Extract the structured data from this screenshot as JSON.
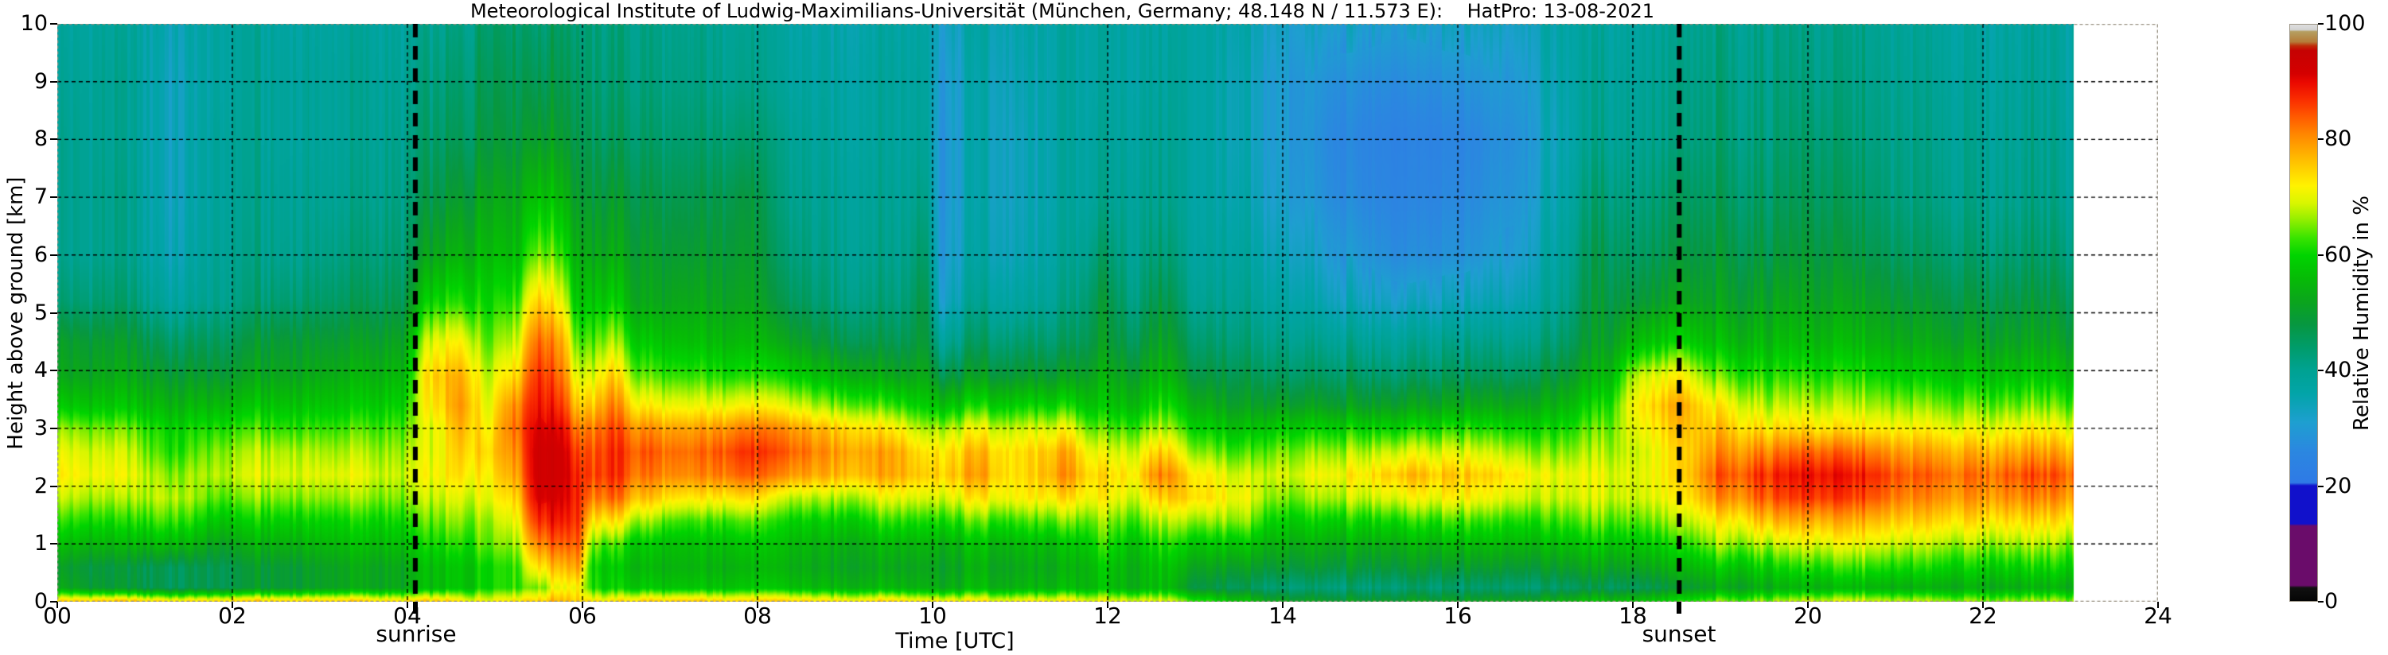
{
  "title": "Meteorological Institute of Ludwig-Maximilians-Universität (München, Germany; 48.148 N / 11.573 E):    HatPro: 13-08-2021",
  "x_axis": {
    "label": "Time [UTC]",
    "ticks": [
      "00",
      "02",
      "04",
      "06",
      "08",
      "10",
      "12",
      "14",
      "16",
      "18",
      "20",
      "22",
      "24"
    ],
    "range_hours": [
      0,
      24
    ]
  },
  "y_axis": {
    "label": "Height above ground [km]",
    "ticks": [
      "0",
      "1",
      "2",
      "3",
      "4",
      "5",
      "6",
      "7",
      "8",
      "9",
      "10"
    ],
    "range_km": [
      0,
      10
    ]
  },
  "colorbar": {
    "label": "Relative Humidity in %",
    "tick_labels": [
      "0",
      "20",
      "40",
      "60",
      "80",
      "100"
    ],
    "range": [
      0,
      100
    ],
    "stops": [
      [
        0,
        "#050505"
      ],
      [
        2.3,
        "#111111"
      ],
      [
        2.7,
        "#6a0c6a"
      ],
      [
        13,
        "#6a0c6a"
      ],
      [
        13.4,
        "#1111cb"
      ],
      [
        20,
        "#1111cb"
      ],
      [
        20.5,
        "#2f7ae6"
      ],
      [
        26,
        "#2b87e0"
      ],
      [
        31,
        "#1e9fd0"
      ],
      [
        36,
        "#02a4a8"
      ],
      [
        40,
        "#00a292"
      ],
      [
        44,
        "#009c6a"
      ],
      [
        48,
        "#079740"
      ],
      [
        52,
        "#0ba51c"
      ],
      [
        56,
        "#06bb06"
      ],
      [
        60,
        "#00d400"
      ],
      [
        63,
        "#39e400"
      ],
      [
        66,
        "#8fee00"
      ],
      [
        69,
        "#d8f600"
      ],
      [
        72,
        "#fff300"
      ],
      [
        75,
        "#ffd000"
      ],
      [
        78,
        "#ffab00"
      ],
      [
        81,
        "#ff8600"
      ],
      [
        84,
        "#ff5a00"
      ],
      [
        87,
        "#fa2d00"
      ],
      [
        90,
        "#ea0800"
      ],
      [
        91.5,
        "#d40000"
      ],
      [
        95.5,
        "#c50202"
      ],
      [
        96.3,
        "#c02a08"
      ],
      [
        97,
        "#b57b38"
      ],
      [
        98.8,
        "#b59f62"
      ],
      [
        99.1,
        "#d2d2d2"
      ],
      [
        100,
        "#dedede"
      ]
    ]
  },
  "annotations": {
    "sunrise": {
      "label": "sunrise",
      "hour_utc": 4.09
    },
    "sunset": {
      "label": "sunset",
      "hour_utc": 18.53
    }
  },
  "chart_data": {
    "type": "heatmap",
    "title": "Meteorological Institute of Ludwig-Maximilians-Universität (München, Germany; 48.148 N / 11.573 E):    HatPro: 13-08-2021",
    "xlabel": "Time [UTC]",
    "ylabel": "Height above ground [km]",
    "value_label": "Relative Humidity in %",
    "x_unit": "hours UTC",
    "y_unit": "km",
    "x_range": [
      0,
      24
    ],
    "y_range": [
      0,
      10
    ],
    "value_range": [
      0,
      100
    ],
    "data_end_hour": 23.03,
    "grid": true,
    "colorbar_position": "right",
    "heights_km": [
      0.03,
      0.25,
      0.6,
      1.0,
      1.4,
      1.8,
      2.2,
      2.6,
      3.0,
      3.4,
      3.9,
      4.5,
      5.2,
      6.0,
      7.0,
      8.0,
      9.0,
      10.0
    ],
    "columns": [
      {
        "t": 0.0,
        "rh": [
          74,
          52,
          50,
          56,
          62,
          68,
          72,
          70,
          66,
          58,
          52,
          50,
          43,
          40,
          40,
          40,
          39,
          38
        ]
      },
      {
        "t": 0.7,
        "rh": [
          74,
          48,
          47,
          54,
          60,
          66,
          70,
          68,
          64,
          57,
          52,
          49,
          43,
          40,
          40,
          39,
          39,
          38
        ]
      },
      {
        "t": 1.3,
        "rh": [
          72,
          46,
          46,
          56,
          63,
          68,
          66,
          62,
          60,
          55,
          50,
          45,
          38,
          35,
          34,
          34,
          34,
          35
        ]
      },
      {
        "t": 1.9,
        "rh": [
          73,
          47,
          47,
          52,
          58,
          64,
          68,
          66,
          62,
          56,
          50,
          46,
          41,
          40,
          39,
          39,
          38,
          38
        ]
      },
      {
        "t": 2.6,
        "rh": [
          74,
          50,
          50,
          55,
          60,
          66,
          70,
          68,
          63,
          58,
          53,
          50,
          44,
          41,
          40,
          39,
          39,
          38
        ]
      },
      {
        "t": 3.3,
        "rh": [
          74,
          52,
          52,
          56,
          60,
          66,
          70,
          67,
          63,
          58,
          54,
          50,
          45,
          42,
          40,
          39,
          39,
          38
        ]
      },
      {
        "t": 3.9,
        "rh": [
          73,
          53,
          53,
          57,
          61,
          66,
          69,
          67,
          64,
          60,
          56,
          52,
          47,
          44,
          42,
          41,
          40,
          39
        ]
      },
      {
        "t": 4.3,
        "rh": [
          74,
          56,
          56,
          60,
          64,
          68,
          71,
          70,
          70,
          73,
          75,
          70,
          60,
          52,
          47,
          44,
          42,
          40
        ]
      },
      {
        "t": 4.65,
        "rh": [
          72,
          58,
          58,
          62,
          66,
          70,
          74,
          76,
          78,
          80,
          78,
          72,
          62,
          55,
          50,
          46,
          44,
          42
        ]
      },
      {
        "t": 4.9,
        "rh": [
          70,
          60,
          60,
          64,
          66,
          70,
          72,
          74,
          72,
          70,
          68,
          64,
          60,
          56,
          52,
          48,
          46,
          44
        ]
      },
      {
        "t": 5.2,
        "rh": [
          72,
          62,
          62,
          66,
          70,
          74,
          78,
          80,
          82,
          80,
          74,
          68,
          62,
          56,
          52,
          48,
          46,
          44
        ]
      },
      {
        "t": 5.5,
        "rh": [
          75,
          66,
          74,
          82,
          88,
          92,
          93,
          93,
          92,
          90,
          88,
          84,
          76,
          66,
          58,
          51,
          47,
          44
        ]
      },
      {
        "t": 5.75,
        "rh": [
          76,
          70,
          76,
          83,
          88,
          91,
          92,
          92,
          90,
          86,
          82,
          78,
          70,
          62,
          55,
          49,
          46,
          44
        ]
      },
      {
        "t": 5.95,
        "rh": [
          75,
          72,
          79,
          84,
          87,
          88,
          88,
          86,
          82,
          76,
          70,
          64,
          58,
          54,
          50,
          47,
          45,
          43
        ]
      },
      {
        "t": 6.1,
        "rh": [
          73,
          62,
          61,
          66,
          74,
          82,
          86,
          85,
          82,
          76,
          70,
          64,
          58,
          53,
          49,
          46,
          44,
          43
        ]
      },
      {
        "t": 6.3,
        "rh": [
          73,
          60,
          59,
          64,
          74,
          84,
          88,
          88,
          86,
          82,
          76,
          68,
          60,
          54,
          50,
          46,
          44,
          43
        ]
      },
      {
        "t": 6.7,
        "rh": [
          74,
          58,
          55,
          58,
          66,
          76,
          82,
          84,
          80,
          72,
          64,
          58,
          52,
          50,
          47,
          44,
          42,
          41
        ]
      },
      {
        "t": 7.2,
        "rh": [
          74,
          57,
          54,
          56,
          62,
          72,
          80,
          82,
          78,
          70,
          62,
          56,
          52,
          49,
          46,
          43,
          41,
          40
        ]
      },
      {
        "t": 7.9,
        "rh": [
          74,
          58,
          55,
          58,
          64,
          74,
          84,
          87,
          82,
          72,
          62,
          56,
          52,
          50,
          48,
          44,
          41,
          40
        ]
      },
      {
        "t": 8.3,
        "rh": [
          74,
          57,
          54,
          56,
          60,
          68,
          80,
          84,
          80,
          70,
          60,
          52,
          46,
          43,
          41,
          40,
          38,
          37
        ]
      },
      {
        "t": 9.0,
        "rh": [
          73,
          56,
          53,
          55,
          60,
          68,
          78,
          80,
          76,
          66,
          56,
          48,
          43,
          41,
          40,
          39,
          38,
          37
        ]
      },
      {
        "t": 9.6,
        "rh": [
          73,
          55,
          52,
          55,
          62,
          70,
          78,
          78,
          72,
          62,
          52,
          46,
          42,
          40,
          39,
          38,
          38,
          37
        ]
      },
      {
        "t": 9.9,
        "rh": [
          72,
          55,
          53,
          56,
          62,
          70,
          76,
          74,
          68,
          60,
          54,
          50,
          48,
          45,
          42,
          40,
          39,
          38
        ]
      },
      {
        "t": 10.1,
        "rh": [
          72,
          54,
          52,
          55,
          62,
          70,
          76,
          74,
          68,
          58,
          48,
          40,
          33,
          31,
          30,
          30,
          31,
          33
        ]
      },
      {
        "t": 10.5,
        "rh": [
          71,
          55,
          53,
          56,
          63,
          72,
          78,
          76,
          70,
          60,
          50,
          44,
          39,
          36,
          35,
          35,
          35,
          36
        ]
      },
      {
        "t": 11.0,
        "rh": [
          71,
          55,
          53,
          56,
          63,
          72,
          74,
          74,
          69,
          60,
          50,
          44,
          38,
          35,
          34,
          34,
          35,
          36
        ]
      },
      {
        "t": 11.5,
        "rh": [
          71,
          55,
          53,
          56,
          64,
          73,
          79,
          77,
          70,
          60,
          50,
          44,
          40,
          38,
          37,
          37,
          37,
          37
        ]
      },
      {
        "t": 11.95,
        "rh": [
          70,
          57,
          58,
          62,
          66,
          72,
          74,
          70,
          64,
          58,
          54,
          50,
          48,
          44,
          40,
          39,
          38,
          38
        ]
      },
      {
        "t": 12.3,
        "rh": [
          70,
          55,
          55,
          58,
          64,
          70,
          74,
          70,
          64,
          57,
          52,
          47,
          43,
          41,
          40,
          39,
          38,
          38
        ]
      },
      {
        "t": 12.6,
        "rh": [
          70,
          57,
          58,
          62,
          68,
          76,
          82,
          76,
          68,
          62,
          56,
          52,
          48,
          44,
          41,
          40,
          39,
          38
        ]
      },
      {
        "t": 13.0,
        "rh": [
          62,
          48,
          52,
          58,
          66,
          74,
          73,
          66,
          60,
          54,
          48,
          44,
          40,
          38,
          37,
          37,
          37,
          37
        ]
      },
      {
        "t": 13.5,
        "rh": [
          56,
          45,
          50,
          57,
          65,
          70,
          68,
          62,
          56,
          50,
          46,
          42,
          39,
          37,
          35,
          34,
          34,
          35
        ]
      },
      {
        "t": 14.0,
        "rh": [
          52,
          44,
          50,
          55,
          60,
          66,
          70,
          66,
          60,
          52,
          46,
          42,
          38,
          35,
          32,
          31,
          31,
          33
        ]
      },
      {
        "t": 14.7,
        "rh": [
          50,
          43,
          49,
          54,
          60,
          68,
          72,
          67,
          60,
          51,
          45,
          40,
          34,
          30,
          27,
          26,
          28,
          32
        ]
      },
      {
        "t": 15.4,
        "rh": [
          50,
          43,
          49,
          54,
          61,
          70,
          76,
          69,
          60,
          51,
          44,
          39,
          32,
          27,
          25,
          24,
          27,
          31
        ]
      },
      {
        "t": 16.0,
        "rh": [
          50,
          43,
          49,
          55,
          62,
          71,
          75,
          69,
          61,
          52,
          45,
          40,
          33,
          28,
          26,
          25,
          28,
          32
        ]
      },
      {
        "t": 16.6,
        "rh": [
          52,
          44,
          50,
          56,
          62,
          70,
          74,
          68,
          61,
          53,
          46,
          41,
          35,
          31,
          29,
          28,
          30,
          33
        ]
      },
      {
        "t": 17.1,
        "rh": [
          54,
          45,
          51,
          57,
          63,
          69,
          71,
          66,
          61,
          55,
          49,
          44,
          40,
          38,
          36,
          35,
          36,
          37
        ]
      },
      {
        "t": 17.6,
        "rh": [
          56,
          46,
          52,
          58,
          64,
          69,
          70,
          67,
          64,
          60,
          54,
          50,
          48,
          46,
          43,
          40,
          39,
          38
        ]
      },
      {
        "t": 18.1,
        "rh": [
          58,
          47,
          53,
          59,
          65,
          70,
          71,
          70,
          72,
          74,
          70,
          58,
          50,
          46,
          43,
          41,
          40,
          39
        ]
      },
      {
        "t": 18.5,
        "rh": [
          60,
          49,
          55,
          61,
          67,
          72,
          74,
          74,
          76,
          78,
          72,
          60,
          52,
          48,
          45,
          42,
          41,
          40
        ]
      },
      {
        "t": 19.0,
        "rh": [
          64,
          52,
          58,
          66,
          72,
          80,
          84,
          80,
          76,
          72,
          64,
          56,
          51,
          48,
          45,
          43,
          42,
          41
        ]
      },
      {
        "t": 19.6,
        "rh": [
          66,
          54,
          60,
          68,
          77,
          85,
          88,
          82,
          74,
          68,
          62,
          56,
          52,
          48,
          45,
          43,
          42,
          41
        ]
      },
      {
        "t": 20.1,
        "rh": [
          68,
          55,
          62,
          70,
          78,
          87,
          90,
          84,
          74,
          68,
          62,
          56,
          52,
          49,
          46,
          44,
          42,
          41
        ]
      },
      {
        "t": 20.6,
        "rh": [
          68,
          55,
          62,
          70,
          77,
          85,
          88,
          82,
          73,
          67,
          61,
          55,
          51,
          47,
          44,
          42,
          41,
          40
        ]
      },
      {
        "t": 21.2,
        "rh": [
          67,
          54,
          61,
          68,
          75,
          81,
          84,
          79,
          72,
          66,
          59,
          53,
          49,
          45,
          42,
          41,
          40,
          39
        ]
      },
      {
        "t": 21.9,
        "rh": [
          66,
          54,
          60,
          67,
          74,
          80,
          83,
          78,
          71,
          65,
          58,
          52,
          48,
          44,
          41,
          40,
          39,
          38
        ]
      },
      {
        "t": 22.5,
        "rh": [
          66,
          54,
          60,
          67,
          74,
          81,
          85,
          79,
          72,
          65,
          58,
          52,
          48,
          44,
          41,
          40,
          39,
          38
        ]
      },
      {
        "t": 23.03,
        "rh": [
          66,
          54,
          60,
          66,
          73,
          80,
          84,
          78,
          71,
          64,
          57,
          51,
          47,
          43,
          40,
          39,
          38,
          38
        ]
      }
    ]
  }
}
